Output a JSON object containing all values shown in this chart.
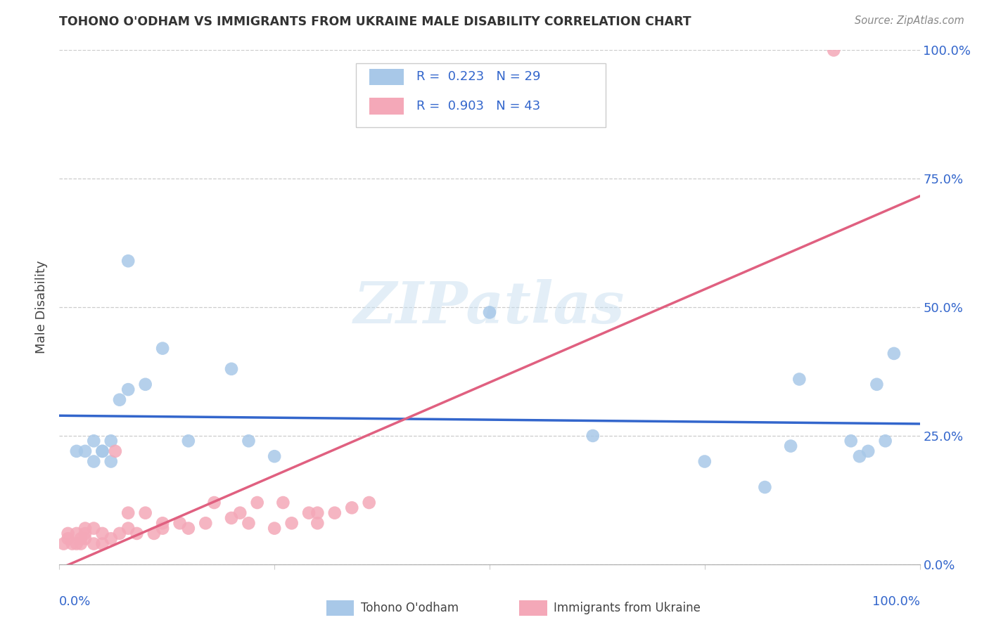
{
  "title": "TOHONO O'ODHAM VS IMMIGRANTS FROM UKRAINE MALE DISABILITY CORRELATION CHART",
  "source": "Source: ZipAtlas.com",
  "ylabel": "Male Disability",
  "ytick_values": [
    0.0,
    0.25,
    0.5,
    0.75,
    1.0
  ],
  "xlim": [
    0.0,
    1.0
  ],
  "ylim": [
    0.0,
    1.0
  ],
  "legend_label1": "Tohono O'odham",
  "legend_label2": "Immigrants from Ukraine",
  "R1": "0.223",
  "N1": "29",
  "R2": "0.903",
  "N2": "43",
  "color_blue": "#a8c8e8",
  "color_pink": "#f4a8b8",
  "color_blue_line": "#3366cc",
  "color_pink_line": "#e06080",
  "color_text_blue": "#3366cc",
  "watermark": "ZIPatlas",
  "blue_x": [
    0.02,
    0.03,
    0.04,
    0.04,
    0.05,
    0.05,
    0.06,
    0.06,
    0.07,
    0.08,
    0.08,
    0.1,
    0.12,
    0.15,
    0.2,
    0.22,
    0.25,
    0.5,
    0.62,
    0.75,
    0.82,
    0.85,
    0.86,
    0.92,
    0.93,
    0.94,
    0.95,
    0.96,
    0.97
  ],
  "blue_y": [
    0.22,
    0.22,
    0.2,
    0.24,
    0.22,
    0.22,
    0.2,
    0.24,
    0.32,
    0.34,
    0.59,
    0.35,
    0.42,
    0.24,
    0.38,
    0.24,
    0.21,
    0.49,
    0.25,
    0.2,
    0.15,
    0.23,
    0.36,
    0.24,
    0.21,
    0.22,
    0.35,
    0.24,
    0.41
  ],
  "pink_x": [
    0.005,
    0.01,
    0.01,
    0.015,
    0.02,
    0.02,
    0.025,
    0.025,
    0.03,
    0.03,
    0.03,
    0.04,
    0.04,
    0.05,
    0.05,
    0.06,
    0.065,
    0.07,
    0.08,
    0.08,
    0.09,
    0.1,
    0.11,
    0.12,
    0.12,
    0.14,
    0.15,
    0.17,
    0.18,
    0.2,
    0.21,
    0.22,
    0.23,
    0.25,
    0.26,
    0.27,
    0.29,
    0.3,
    0.3,
    0.32,
    0.34,
    0.36,
    0.9
  ],
  "pink_y": [
    0.04,
    0.05,
    0.06,
    0.04,
    0.04,
    0.06,
    0.04,
    0.05,
    0.05,
    0.06,
    0.07,
    0.04,
    0.07,
    0.04,
    0.06,
    0.05,
    0.22,
    0.06,
    0.07,
    0.1,
    0.06,
    0.1,
    0.06,
    0.07,
    0.08,
    0.08,
    0.07,
    0.08,
    0.12,
    0.09,
    0.1,
    0.08,
    0.12,
    0.07,
    0.12,
    0.08,
    0.1,
    0.08,
    0.1,
    0.1,
    0.11,
    0.12,
    1.0
  ]
}
